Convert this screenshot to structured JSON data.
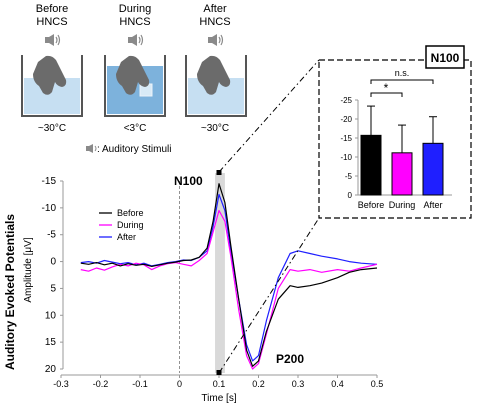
{
  "conditions": [
    {
      "title_line1": "Before",
      "title_line2": "HNCS",
      "temp": "~30°C"
    },
    {
      "title_line1": "During",
      "title_line2": "HNCS",
      "temp": "<3°C"
    },
    {
      "title_line1": "After",
      "title_line2": "HNCS",
      "temp": "~30°C"
    }
  ],
  "stimulus_legend": ": Auditory Stimuli",
  "colors": {
    "before": "#000000",
    "during": "#ff00ff",
    "after": "#1f1fff",
    "water": "#c6dff2",
    "cold_water": "#7db2dc",
    "shade": "#d9d9d9",
    "hand": "#6b6b6b",
    "speaker": "#8a8a8a"
  },
  "icons": {
    "speaker": "speaker-icon",
    "hand": "hand-icon",
    "ice": "ice-cube-icon"
  },
  "main_chart": {
    "y_title": "Auditory Evoked Potentials",
    "y_unit_label": "Amplitude [μV]",
    "x_title": "Time [s]",
    "x_ticks": [
      "-0.3",
      "-0.2",
      "-0.1",
      "0",
      "0.1",
      "0.2",
      "0.3",
      "0.4",
      "0.5"
    ],
    "y_ticks": [
      "-15",
      "-10",
      "-5",
      "0",
      "5",
      "10",
      "15",
      "20"
    ],
    "n100_label": "N100",
    "p200_label": "P200",
    "legend": [
      "Before",
      "During",
      "After"
    ]
  },
  "inset": {
    "title": "N100",
    "y_ticks": [
      "-25",
      "-20",
      "-15",
      "-10",
      "-5",
      "0"
    ],
    "categories": [
      "Before",
      "During",
      "After"
    ],
    "sig_label": "*",
    "ns_label": "n.s."
  },
  "chart_data": [
    {
      "type": "line",
      "xlabel": "Time [s]",
      "ylabel": "Amplitude [μV]",
      "xlim": [
        -0.3,
        0.5
      ],
      "ylim": [
        -15,
        20
      ],
      "y_inverted": true,
      "grid": false,
      "legend_position": "left",
      "shaded_interval": [
        0.09,
        0.115
      ],
      "annotations": [
        "N100",
        "P200"
      ],
      "series": [
        {
          "name": "Before",
          "x": [
            -0.25,
            -0.23,
            -0.21,
            -0.19,
            -0.17,
            -0.15,
            -0.13,
            -0.11,
            -0.09,
            -0.07,
            -0.05,
            -0.03,
            -0.01,
            0.01,
            0.03,
            0.05,
            0.07,
            0.085,
            0.1,
            0.115,
            0.13,
            0.15,
            0.17,
            0.185,
            0.2,
            0.22,
            0.25,
            0.28,
            0.3,
            0.33,
            0.36,
            0.4,
            0.43,
            0.46,
            0.5
          ],
          "y": [
            0.3,
            0.5,
            0.2,
            0.6,
            0.3,
            0.8,
            0.4,
            0.7,
            0.5,
            0.9,
            0.6,
            0.3,
            0.1,
            -0.2,
            -0.3,
            -0.8,
            -2.5,
            -7.5,
            -14.5,
            -11,
            -3,
            7,
            16.5,
            19.5,
            18.5,
            13,
            7,
            4.5,
            4.8,
            4.5,
            4.0,
            3.0,
            2.0,
            1.5,
            1.2
          ]
        },
        {
          "name": "During",
          "x": [
            -0.25,
            -0.23,
            -0.21,
            -0.19,
            -0.17,
            -0.15,
            -0.13,
            -0.11,
            -0.09,
            -0.07,
            -0.05,
            -0.03,
            -0.01,
            0.01,
            0.03,
            0.05,
            0.07,
            0.085,
            0.1,
            0.115,
            0.13,
            0.15,
            0.17,
            0.185,
            0.2,
            0.22,
            0.25,
            0.28,
            0.3,
            0.33,
            0.36,
            0.4,
            0.43,
            0.46,
            0.5
          ],
          "y": [
            1.5,
            1.8,
            1.2,
            1.6,
            1.0,
            0.5,
            0.8,
            0.3,
            0.6,
            1.5,
            0.8,
            0.4,
            0.2,
            0.5,
            0.8,
            -0.2,
            -1.5,
            -5.5,
            -9.5,
            -7.5,
            -1,
            9,
            17.5,
            20,
            19,
            13.5,
            5,
            1.5,
            1.8,
            1.5,
            2.0,
            1.5,
            1.8,
            1.2,
            0.5
          ]
        },
        {
          "name": "After",
          "x": [
            -0.25,
            -0.23,
            -0.21,
            -0.19,
            -0.17,
            -0.15,
            -0.13,
            -0.11,
            -0.09,
            -0.07,
            -0.05,
            -0.03,
            -0.01,
            0.01,
            0.03,
            0.05,
            0.07,
            0.085,
            0.1,
            0.115,
            0.13,
            0.15,
            0.17,
            0.185,
            0.2,
            0.22,
            0.25,
            0.28,
            0.3,
            0.33,
            0.36,
            0.4,
            0.43,
            0.46,
            0.5
          ],
          "y": [
            0.2,
            0.0,
            0.3,
            -0.2,
            0.1,
            0.4,
            0.2,
            0.6,
            0.3,
            0.8,
            0.5,
            0.2,
            0.0,
            -0.3,
            -0.2,
            -0.8,
            -2.0,
            -6.5,
            -12.5,
            -9.5,
            -2,
            7,
            15.5,
            18.5,
            17.5,
            11,
            3,
            -1.5,
            -2,
            -1.5,
            -1.0,
            -0.5,
            0.0,
            0.3,
            0.5
          ]
        }
      ]
    },
    {
      "type": "bar",
      "title": "N100",
      "categories": [
        "Before",
        "During",
        "After"
      ],
      "values": [
        15.7,
        11.1,
        13.6
      ],
      "errors": [
        7.7,
        7.3,
        7.0
      ],
      "ylim": [
        0,
        -25
      ],
      "y_inverted": true,
      "significance": [
        {
          "pair": [
            "Before",
            "During"
          ],
          "label": "*"
        },
        {
          "pair": [
            "Before",
            "After"
          ],
          "label": "n.s."
        }
      ]
    }
  ]
}
